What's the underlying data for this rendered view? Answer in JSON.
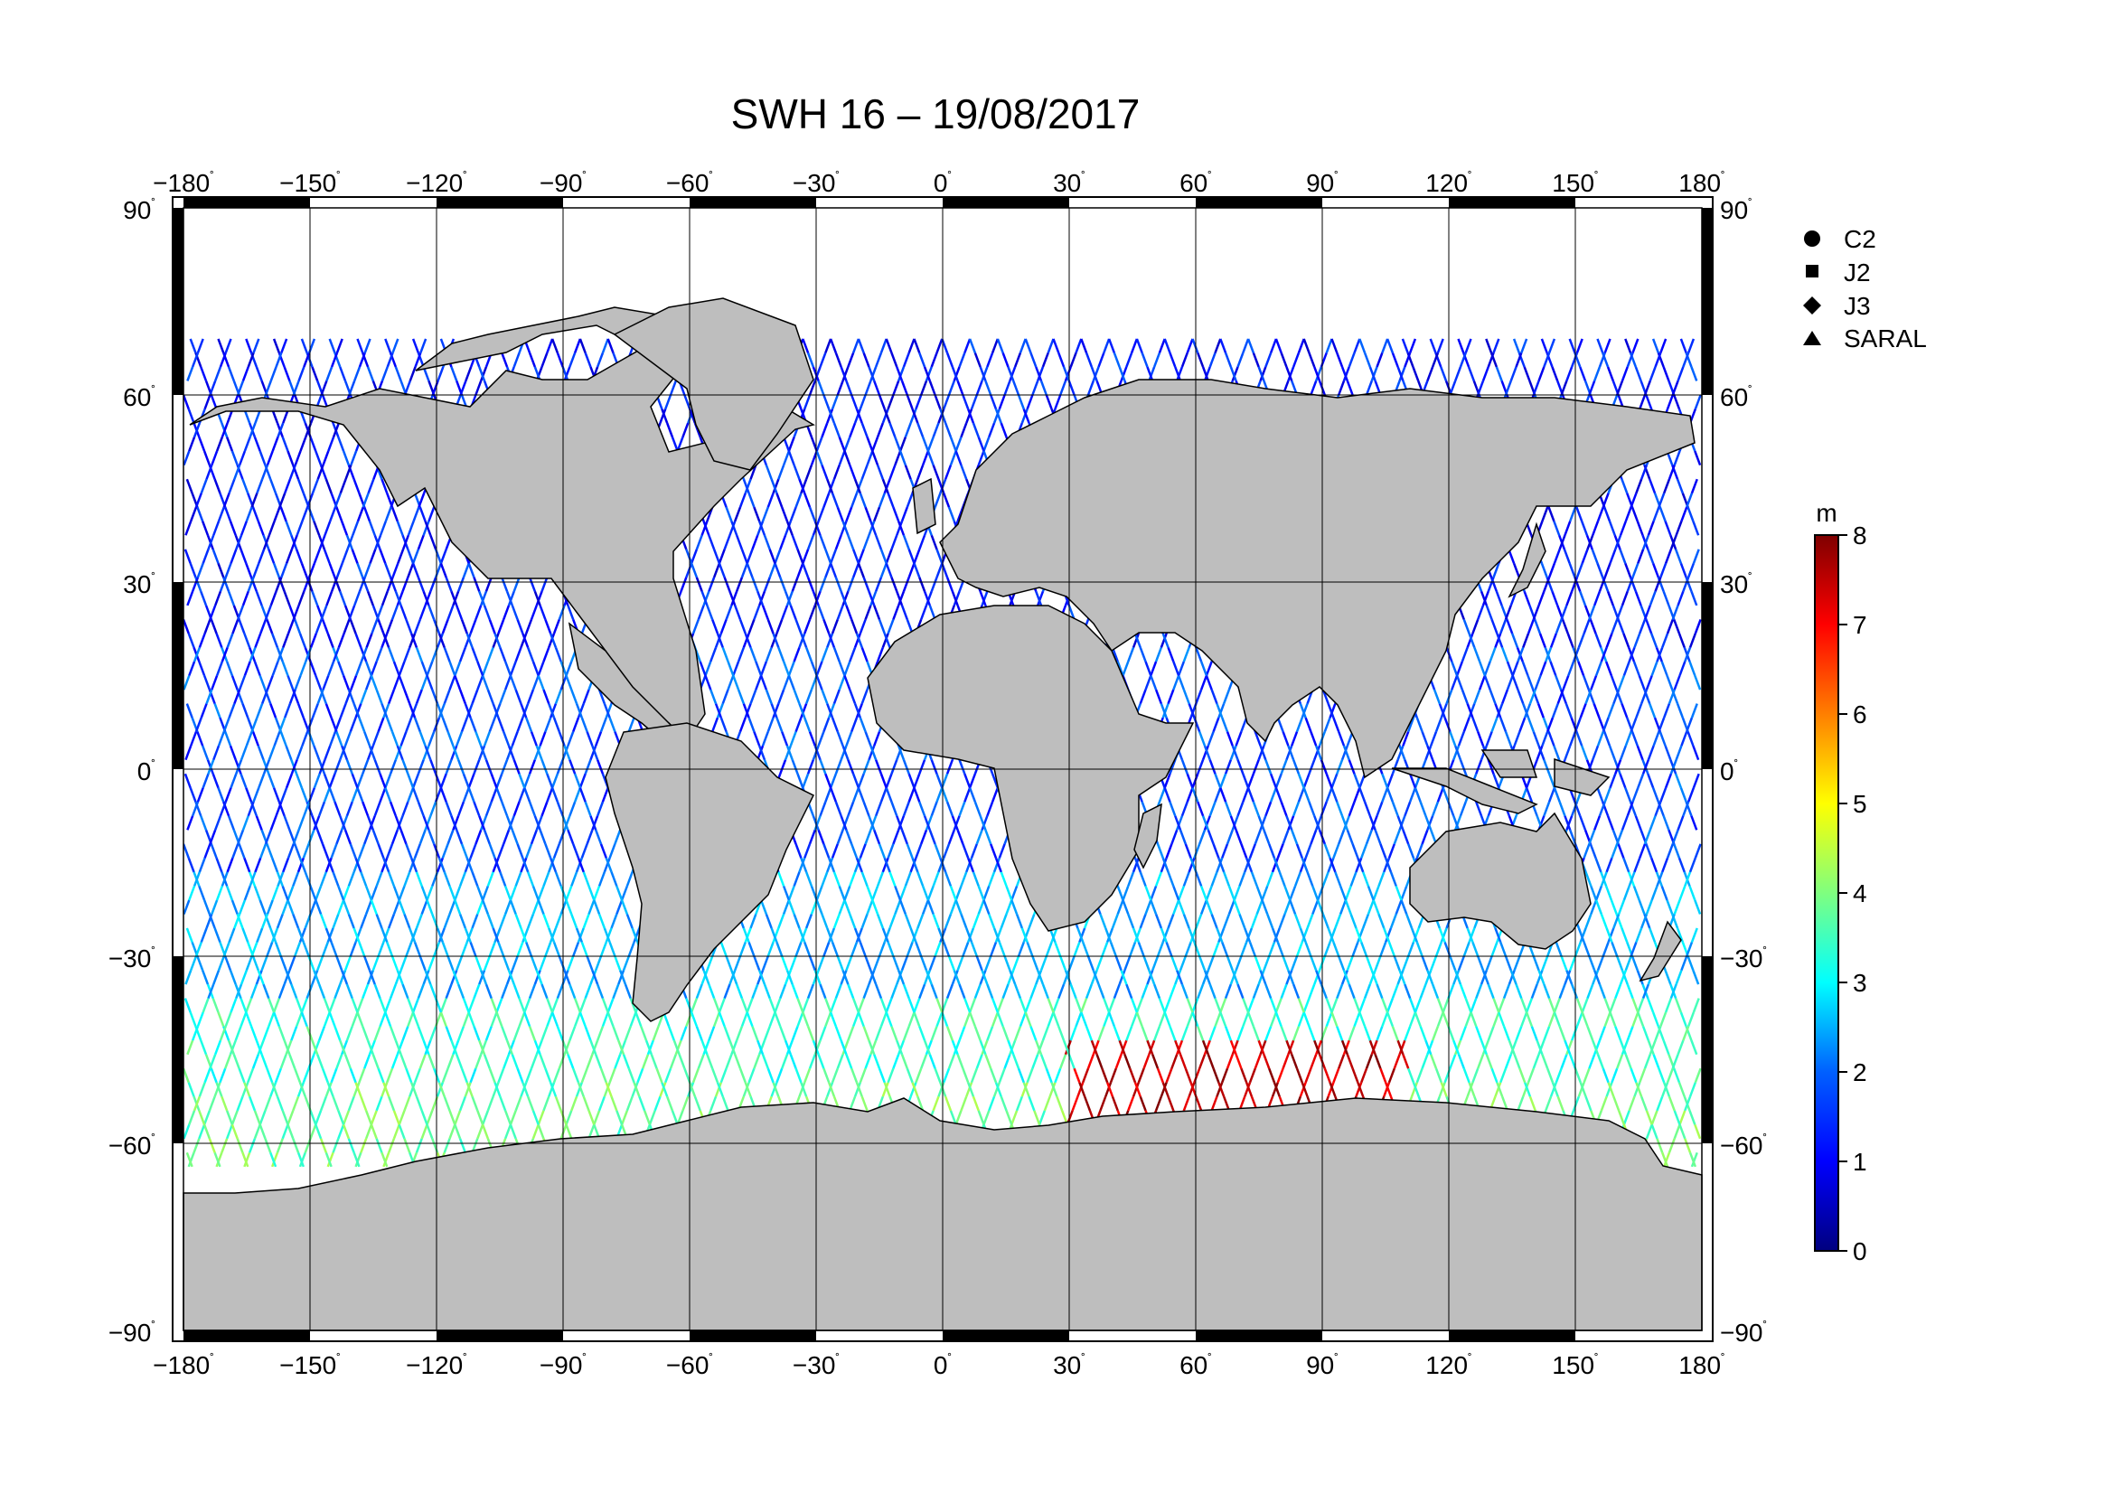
{
  "title": "SWH 16 – 19/08/2017",
  "map": {
    "lon_ticks": [
      "−180",
      "−150",
      "−120",
      "−90",
      "−60",
      "−30",
      "0",
      "30",
      "60",
      "90",
      "120",
      "150",
      "180"
    ],
    "lat_ticks": [
      "90",
      "60",
      "30",
      "0",
      "−30",
      "−60",
      "−90"
    ],
    "degree_symbol": "˚",
    "land_color": "#bebebe",
    "grid": true,
    "xlim": [
      -180,
      180
    ],
    "ylim": [
      -90,
      90
    ]
  },
  "legend": {
    "items": [
      {
        "label": "C2",
        "marker": "circle"
      },
      {
        "label": "J2",
        "marker": "square"
      },
      {
        "label": "J3",
        "marker": "diamond"
      },
      {
        "label": "SARAL",
        "marker": "triangle"
      }
    ]
  },
  "colorbar": {
    "unit": "m",
    "min": 0,
    "max": 8,
    "ticks": [
      "0",
      "1",
      "2",
      "3",
      "4",
      "5",
      "6",
      "7",
      "8"
    ],
    "colormap": [
      "#00007f",
      "#0000ff",
      "#007fff",
      "#00ffff",
      "#7fff7f",
      "#ffff00",
      "#ff7f00",
      "#ff0000",
      "#7f0000"
    ]
  },
  "chart_data": {
    "type": "scatter",
    "title": "SWH 16 – 19/08/2017",
    "xlabel": "",
    "ylabel": "",
    "xlim": [
      -180,
      180
    ],
    "ylim": [
      -90,
      90
    ],
    "value_unit": "m",
    "value_range": [
      0,
      8
    ],
    "series": [
      {
        "name": "C2"
      },
      {
        "name": "J2"
      },
      {
        "name": "J3"
      },
      {
        "name": "SARAL"
      }
    ],
    "swh_by_latitude_band": [
      {
        "lat_range": [
          50,
          75
        ],
        "swh_m": 1.2
      },
      {
        "lat_range": [
          20,
          50
        ],
        "swh_m": 1.2
      },
      {
        "lat_range": [
          -15,
          20
        ],
        "swh_m": 1.6
      },
      {
        "lat_range": [
          -35,
          -15
        ],
        "swh_m": 2.4
      },
      {
        "lat_range": [
          -50,
          -35
        ],
        "swh_m": 3.4
      },
      {
        "lat_range": [
          -65,
          -50
        ],
        "swh_m": 3.8
      }
    ],
    "high_swh_region": {
      "lon_range": [
        30,
        110
      ],
      "lat_range": [
        -62,
        -42
      ],
      "swh_m": 7.5
    }
  }
}
